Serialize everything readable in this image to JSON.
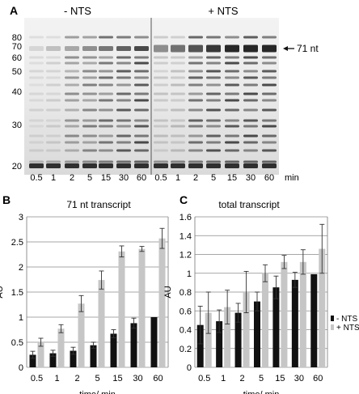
{
  "panelA": {
    "letter": "A",
    "condition_left": "- NTS",
    "condition_right": "+ NTS",
    "size_markers": [
      "80",
      "70",
      "60",
      "50",
      "40",
      "30",
      "20"
    ],
    "arrow_label": "71 nt",
    "lane_times_left": [
      "0.5",
      "1",
      "2",
      "5",
      "15",
      "30",
      "60"
    ],
    "lane_times_right": [
      "0.5",
      "1",
      "2",
      "5",
      "15",
      "30",
      "60"
    ],
    "time_unit": "min"
  },
  "panelB": {
    "letter": "B",
    "title": "71 nt transcript"
  },
  "panelC": {
    "letter": "C",
    "title": "total transcript",
    "legend": [
      "- NTS",
      "+ NTS"
    ]
  },
  "chart_data": [
    {
      "type": "bar",
      "title": "71 nt transcript",
      "xlabel": "time/ min",
      "ylabel": "AU",
      "ylim": [
        0,
        3
      ],
      "yticks": [
        "0",
        "0.5",
        "1",
        "1.5",
        "2",
        "2.5",
        "3"
      ],
      "categories": [
        "0.5",
        "1",
        "2",
        "5",
        "15",
        "30",
        "60"
      ],
      "series": [
        {
          "name": "- NTS",
          "color": "#111111",
          "values": [
            0.25,
            0.28,
            0.33,
            0.44,
            0.67,
            0.88,
            1.0
          ],
          "errors": [
            0.07,
            0.06,
            0.07,
            0.06,
            0.08,
            0.1,
            0.0
          ]
        },
        {
          "name": "+ NTS",
          "color": "#c6c6c6",
          "values": [
            0.5,
            0.77,
            1.27,
            1.74,
            2.31,
            2.36,
            2.57
          ],
          "errors": [
            0.08,
            0.08,
            0.16,
            0.18,
            0.11,
            0.05,
            0.2
          ]
        }
      ]
    },
    {
      "type": "bar",
      "title": "total transcript",
      "xlabel": "time/ min",
      "ylabel": "AU",
      "ylim": [
        0,
        1.6
      ],
      "yticks": [
        "0",
        "0.2",
        "0.4",
        "0.6",
        "0.8",
        "1",
        "1.2",
        "1.4",
        "1.6"
      ],
      "categories": [
        "0.5",
        "1",
        "2",
        "5",
        "15",
        "30",
        "60"
      ],
      "legend": "right",
      "series": [
        {
          "name": "- NTS",
          "color": "#111111",
          "values": [
            0.45,
            0.49,
            0.58,
            0.7,
            0.85,
            0.93,
            0.99
          ],
          "errors": [
            0.2,
            0.12,
            0.1,
            0.1,
            0.12,
            0.08,
            0.0
          ]
        },
        {
          "name": "+ NTS",
          "color": "#c6c6c6",
          "values": [
            0.58,
            0.64,
            0.8,
            1.0,
            1.12,
            1.12,
            1.26
          ],
          "errors": [
            0.22,
            0.18,
            0.22,
            0.09,
            0.07,
            0.13,
            0.26
          ]
        }
      ]
    }
  ]
}
